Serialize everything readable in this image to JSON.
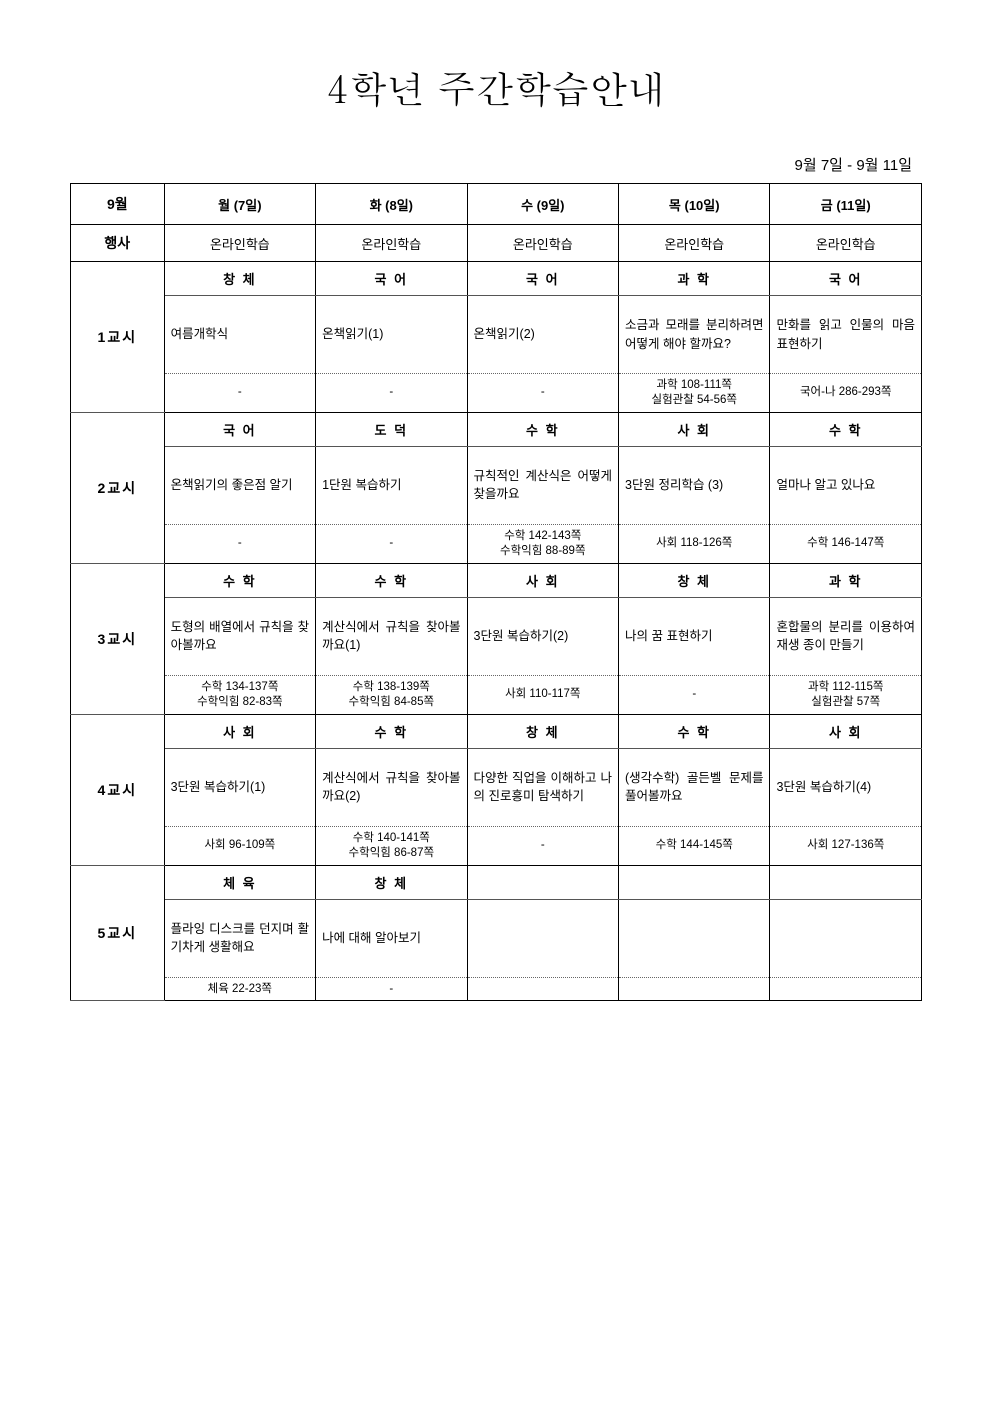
{
  "title": "4학년 주간학습안내",
  "date_range": "9월 7일 - 9월 11일",
  "month_label": "9월",
  "event_label": "행사",
  "days": [
    "월 (7일)",
    "화 (8일)",
    "수 (9일)",
    "목 (10일)",
    "금 (11일)"
  ],
  "events": [
    "온라인학습",
    "온라인학습",
    "온라인학습",
    "온라인학습",
    "온라인학습"
  ],
  "periods": [
    {
      "label": "1교시",
      "subjects": [
        "창 체",
        "국 어",
        "국 어",
        "과 학",
        "국 어"
      ],
      "contents": [
        "여름개학식",
        "온책읽기(1)",
        "온책읽기(2)",
        "소금과 모래를 분리하려면 어떻게 해야 할까요?",
        "만화를 읽고 인물의 마음 표현하기"
      ],
      "pages": [
        "-",
        "-",
        "-",
        "과학 108-111쪽\n실험관찰 54-56쪽",
        "국어-나 286-293쪽"
      ]
    },
    {
      "label": "2교시",
      "subjects": [
        "국 어",
        "도 덕",
        "수 학",
        "사 회",
        "수 학"
      ],
      "contents": [
        "온책읽기의 좋은점 알기",
        "1단원 복습하기",
        "규칙적인 계산식은 어떻게 찾을까요",
        "3단원 정리학습 (3)",
        "얼마나 알고 있나요"
      ],
      "pages": [
        "-",
        "-",
        "수학 142-143쪽\n수학익힘 88-89쪽",
        "사회 118-126쪽",
        "수학 146-147쪽"
      ]
    },
    {
      "label": "3교시",
      "subjects": [
        "수 학",
        "수 학",
        "사 회",
        "창 체",
        "과 학"
      ],
      "contents": [
        "도형의 배열에서 규칙을 찾아볼까요",
        "계산식에서 규칙을 찾아볼까요(1)",
        "3단원 복습하기(2)",
        "나의 꿈 표현하기",
        "혼합물의 분리를 이용하여 재생 종이 만들기"
      ],
      "pages": [
        "수학 134-137쪽\n수학익힘 82-83쪽",
        "수학 138-139쪽\n수학익힘 84-85쪽",
        "사회 110-117쪽",
        "-",
        "과학 112-115쪽\n실험관찰 57쪽"
      ]
    },
    {
      "label": "4교시",
      "subjects": [
        "사 회",
        "수 학",
        "창 체",
        "수 학",
        "사 회"
      ],
      "contents": [
        "3단원 복습하기(1)",
        "계산식에서 규칙을 찾아볼까요(2)",
        "다양한 직업을 이해하고 나의 진로흥미 탐색하기",
        "(생각수학) 골든벨 문제를 풀어볼까요",
        "3단원 복습하기(4)"
      ],
      "pages": [
        "사회 96-109쪽",
        "수학 140-141쪽\n수학익힘 86-87쪽",
        "-",
        "수학 144-145쪽",
        "사회 127-136쪽"
      ]
    },
    {
      "label": "5교시",
      "subjects": [
        "체 육",
        "창 체",
        "",
        "",
        ""
      ],
      "contents": [
        "플라잉 디스크를 던지며 활기차게 생활해요",
        "나에 대해 알아보기",
        "",
        "",
        ""
      ],
      "pages": [
        "체육 22-23쪽",
        "-",
        "",
        "",
        ""
      ]
    }
  ]
}
